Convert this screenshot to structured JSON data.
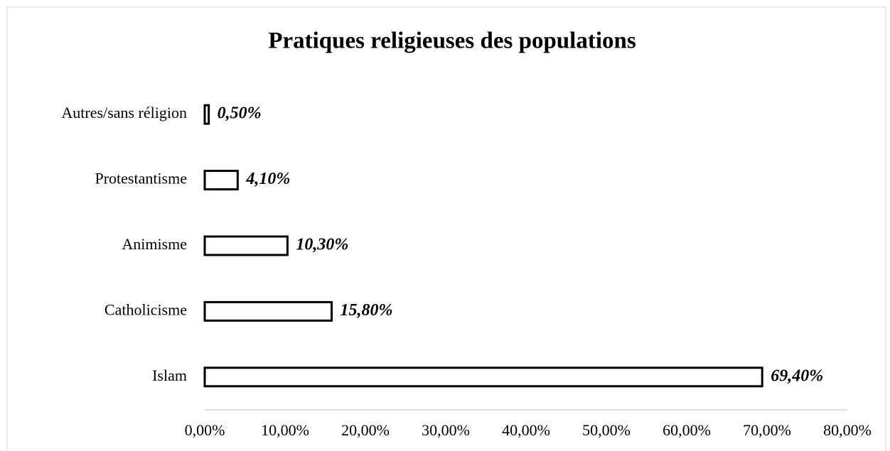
{
  "chart_data": {
    "type": "bar",
    "orientation": "horizontal",
    "title": "Pratiques religieuses des populations",
    "categories": [
      "Autres/sans réligion",
      "Protestantisme",
      "Animisme",
      "Catholicisme",
      "Islam"
    ],
    "values": [
      0.5,
      4.1,
      10.3,
      15.8,
      69.4
    ],
    "value_labels": [
      "0,50%",
      "4,10%",
      "10,30%",
      "15,80%",
      "69,40%"
    ],
    "color": "#ffffff",
    "edgecolor": "#000000",
    "xlim": [
      0,
      80
    ],
    "xticks": [
      {
        "value": 0,
        "label": "0,00%"
      },
      {
        "value": 10,
        "label": "10,00%"
      },
      {
        "value": 20,
        "label": "20,00%"
      },
      {
        "value": 30,
        "label": "30,00%"
      },
      {
        "value": 40,
        "label": "40,00%"
      },
      {
        "value": 50,
        "label": "50,00%"
      },
      {
        "value": 60,
        "label": "60,00%"
      },
      {
        "value": 70,
        "label": "70,00%"
      },
      {
        "value": 80,
        "label": "80,00%"
      }
    ],
    "grid": false
  }
}
